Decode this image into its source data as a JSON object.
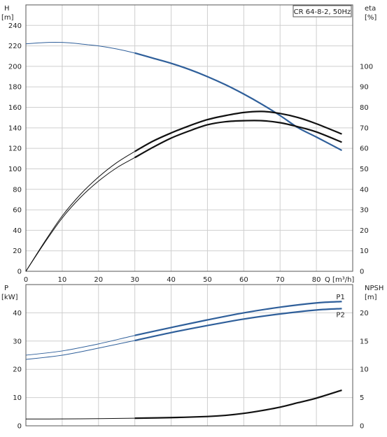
{
  "chart_data": [
    {
      "type": "line",
      "title": "CR 64-8-2, 50Hz",
      "xlabel": "Q [m³/h]",
      "ylabel_left": [
        "H",
        "[m]"
      ],
      "ylabel_right": [
        "eta",
        "[%]"
      ],
      "xlim": [
        0,
        90
      ],
      "ylim_left": [
        0,
        260
      ],
      "ylim_right": [
        0,
        130
      ],
      "x_ticks": [
        0,
        10,
        20,
        30,
        40,
        50,
        60,
        70,
        80
      ],
      "y_ticks_left": [
        0,
        20,
        40,
        60,
        80,
        100,
        120,
        140,
        160,
        180,
        200,
        220,
        240
      ],
      "y_ticks_right": [
        0,
        10,
        20,
        30,
        40,
        50,
        60,
        70,
        80,
        90,
        100
      ],
      "grid": true,
      "series": [
        {
          "axis": "left",
          "color": "#2f5f9a",
          "x": [
            0,
            4,
            8,
            12,
            16,
            20,
            25,
            30,
            35,
            40,
            45,
            50,
            55,
            60,
            65,
            70,
            75,
            80,
            87
          ],
          "y": [
            222,
            223,
            223.5,
            223,
            221.5,
            220,
            217,
            213,
            208,
            203,
            197,
            190,
            182,
            173,
            163,
            152,
            140,
            131,
            118
          ]
        },
        {
          "axis": "right",
          "color": "#111111",
          "x": [
            0,
            5,
            10,
            15,
            20,
            25,
            30,
            35,
            40,
            45,
            50,
            55,
            60,
            65,
            70,
            75,
            80,
            87
          ],
          "y": [
            0,
            14,
            27,
            37.5,
            46,
            53,
            58.5,
            63.5,
            67.5,
            71,
            74,
            76,
            77.5,
            78,
            77,
            75,
            72,
            67
          ]
        },
        {
          "axis": "right",
          "color": "#111111",
          "x": [
            0,
            5,
            10,
            15,
            20,
            25,
            30,
            35,
            40,
            45,
            50,
            55,
            60,
            65,
            70,
            75,
            80,
            87
          ],
          "y": [
            0,
            13.5,
            26,
            36,
            44,
            50.5,
            55.5,
            60.5,
            65,
            68.5,
            71.5,
            73,
            73.5,
            73.5,
            72.5,
            70.5,
            68,
            63
          ]
        }
      ]
    },
    {
      "type": "line",
      "xlabel": "",
      "ylabel_left": [
        "P",
        "[kW]"
      ],
      "ylabel_right": [
        "NPSH",
        "[m]"
      ],
      "xlim": [
        0,
        90
      ],
      "ylim_left": [
        0,
        50
      ],
      "ylim_right": [
        0,
        25
      ],
      "y_ticks_left": [
        0,
        10,
        20,
        30,
        40
      ],
      "y_ticks_right": [
        0,
        5,
        10,
        15,
        20
      ],
      "grid": true,
      "series": [
        {
          "name": "P1",
          "axis": "left",
          "color": "#2f5f9a",
          "x": [
            0,
            10,
            20,
            30,
            40,
            50,
            60,
            70,
            80,
            87
          ],
          "y": [
            25,
            26.5,
            29,
            32,
            34.8,
            37.5,
            40,
            42,
            43.5,
            44
          ]
        },
        {
          "name": "P2",
          "axis": "left",
          "color": "#2f5f9a",
          "x": [
            0,
            10,
            20,
            30,
            40,
            50,
            60,
            70,
            80,
            87
          ],
          "y": [
            23.5,
            25,
            27.5,
            30.2,
            33,
            35.5,
            37.8,
            39.6,
            41,
            41.5
          ]
        },
        {
          "axis": "right",
          "color": "#111111",
          "x": [
            0,
            10,
            20,
            30,
            40,
            50,
            55,
            60,
            65,
            70,
            75,
            80,
            87
          ],
          "y": [
            1.2,
            1.22,
            1.27,
            1.35,
            1.45,
            1.65,
            1.85,
            2.2,
            2.7,
            3.3,
            4.1,
            4.9,
            6.3
          ]
        }
      ]
    }
  ]
}
